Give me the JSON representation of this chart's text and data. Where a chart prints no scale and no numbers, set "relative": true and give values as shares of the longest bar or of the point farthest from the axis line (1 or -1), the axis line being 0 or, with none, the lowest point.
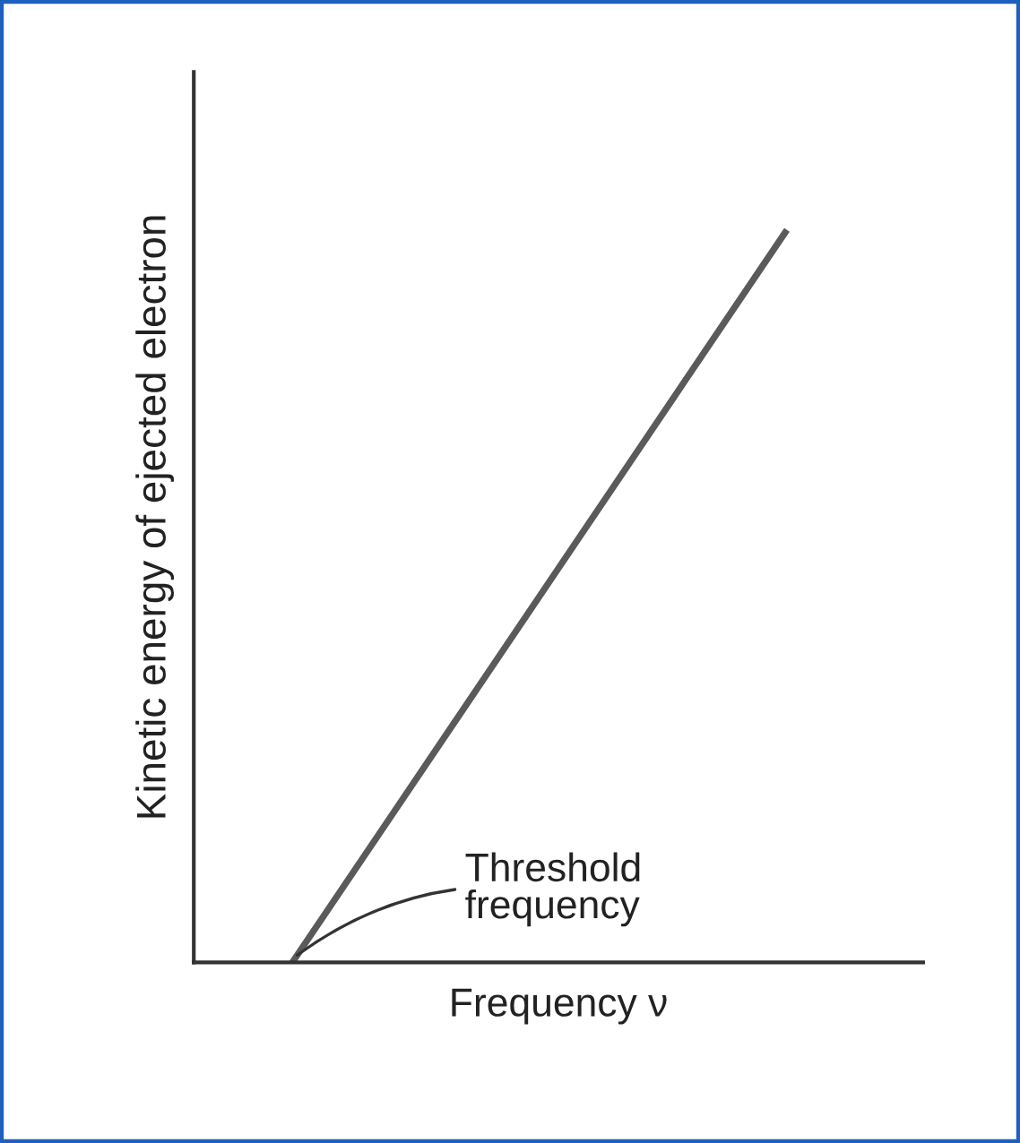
{
  "chart_data": {
    "type": "line",
    "relative": true,
    "xlabel": "Frequency ν",
    "ylabel": "Kinetic energy of ejected electron",
    "categories": [
      null,
      null,
      null,
      null,
      null,
      null
    ],
    "series": [
      {
        "color": "#5a5a5a",
        "values": [
          0,
          0.2,
          0.4,
          0.6,
          0.8,
          1
        ]
      }
    ],
    "annotations": [
      "Threshold\nfrequency"
    ],
    "grid": false,
    "tick_labels": false,
    "marker": "none",
    "line_style": "solid"
  }
}
